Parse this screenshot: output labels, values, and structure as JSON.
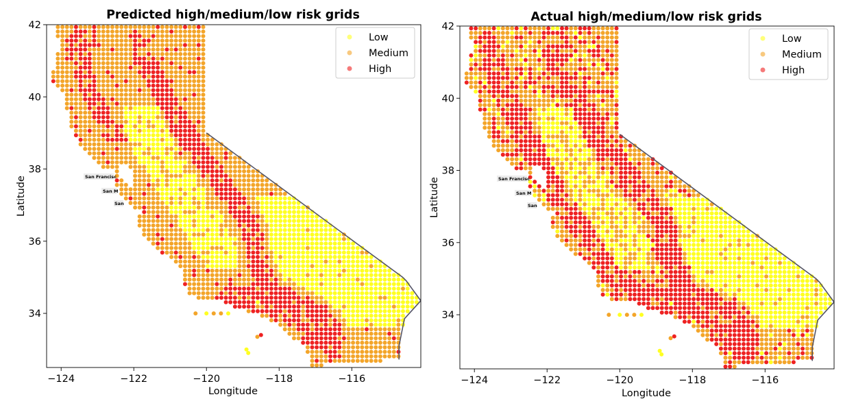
{
  "figures": [
    {
      "id": "predicted",
      "title": "Predicted high/medium/low risk grids",
      "xlabel": "Longitude",
      "ylabel": "Latitude"
    },
    {
      "id": "actual",
      "title": "Actual high/medium/low risk grids",
      "xlabel": "Longitude",
      "ylabel": "Latitude"
    }
  ],
  "legend": [
    {
      "label": "Low",
      "color": "#ffff22"
    },
    {
      "label": "Medium",
      "color": "#f3a52a"
    },
    {
      "label": "High",
      "color": "#ee2222"
    }
  ],
  "city_labels": [
    "San Francisc",
    "San M",
    "San"
  ],
  "colors": {
    "low": "#ffff22",
    "medium": "#f3a52a",
    "high": "#ee2222",
    "coast": "#555566"
  },
  "chart_data": [
    {
      "type": "scatter",
      "title": "Predicted high/medium/low risk grids",
      "xlabel": "Longitude",
      "ylabel": "Latitude",
      "xlim": [
        -124.4,
        -114.1
      ],
      "ylim": [
        32.5,
        42.0
      ],
      "xticks": [
        -124,
        -122,
        -120,
        -118,
        -116
      ],
      "yticks": [
        34,
        36,
        38,
        40,
        42
      ],
      "legend_position": "top-right",
      "series": [
        {
          "name": "Low",
          "color": "#ffff22"
        },
        {
          "name": "Medium",
          "color": "#f3a52a"
        },
        {
          "name": "High",
          "color": "#ee2222"
        }
      ]
    },
    {
      "type": "scatter",
      "title": "Actual high/medium/low risk grids",
      "xlabel": "Longitude",
      "ylabel": "Latitude",
      "xlim": [
        -124.4,
        -114.1
      ],
      "ylim": [
        32.5,
        42.0
      ],
      "xticks": [
        -124,
        -122,
        -120,
        -118,
        -116
      ],
      "yticks": [
        34,
        36,
        38,
        40,
        42
      ],
      "legend_position": "top-right",
      "series": [
        {
          "name": "Low",
          "color": "#ffff22"
        },
        {
          "name": "Medium",
          "color": "#f3a52a"
        },
        {
          "name": "High",
          "color": "#ee2222"
        }
      ]
    }
  ]
}
